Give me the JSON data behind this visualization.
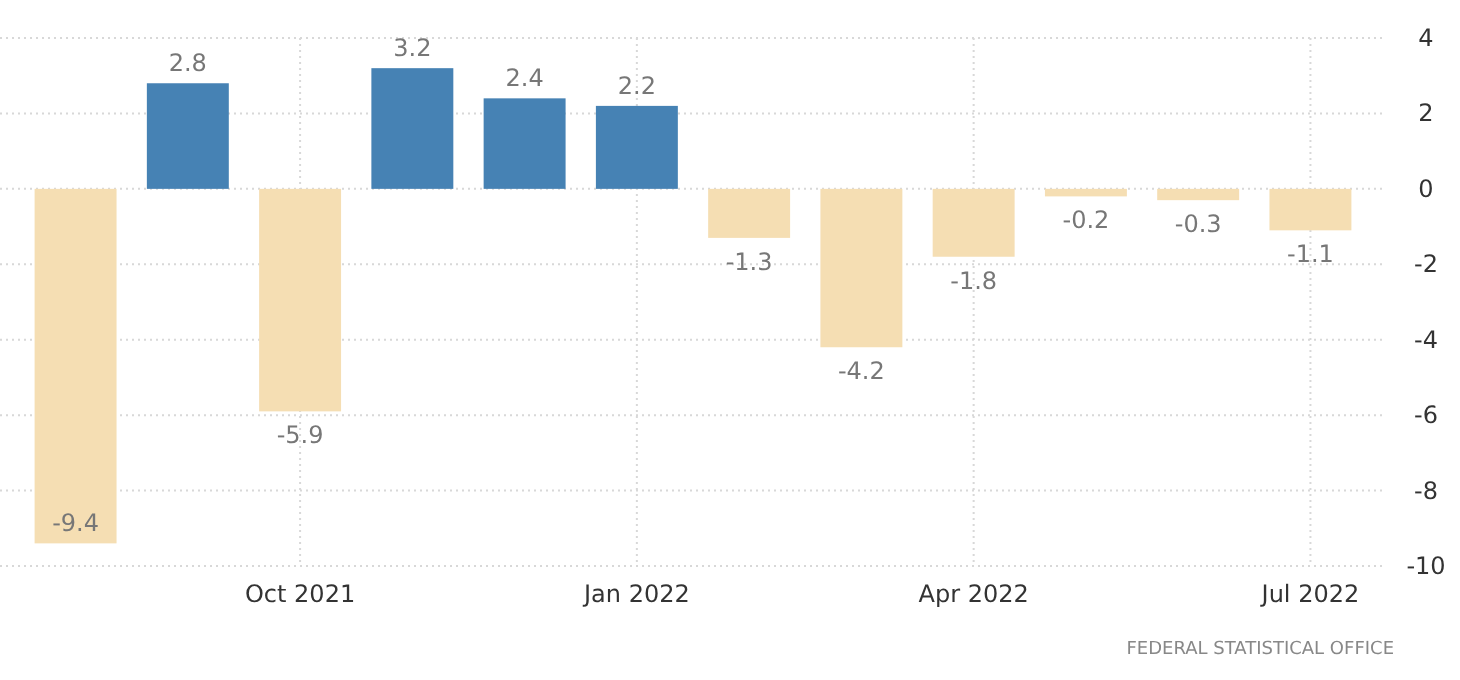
{
  "chart_data": {
    "type": "bar",
    "categories": [
      null,
      null,
      "Oct 2021",
      null,
      null,
      "Jan 2022",
      null,
      null,
      "Apr 2022",
      null,
      null,
      "Jul 2022"
    ],
    "values": [
      -9.4,
      2.8,
      -5.9,
      3.2,
      2.4,
      2.2,
      -1.3,
      -4.2,
      -1.8,
      -0.2,
      -0.3,
      -1.1
    ],
    "colors": [
      "#f5deb3",
      "#4682b4",
      "#f5deb3",
      "#4682b4",
      "#4682b4",
      "#4682b4",
      "#f5deb3",
      "#f5deb3",
      "#f5deb3",
      "#f5deb3",
      "#f5deb3",
      "#f5deb3"
    ],
    "ylim": [
      -10,
      4
    ],
    "yticks": [
      -10,
      -8,
      -6,
      -4,
      -2,
      0,
      2,
      4
    ],
    "grid": true,
    "data_labels": true,
    "annotations": [
      "FEDERAL STATISTICAL OFFICE"
    ]
  }
}
